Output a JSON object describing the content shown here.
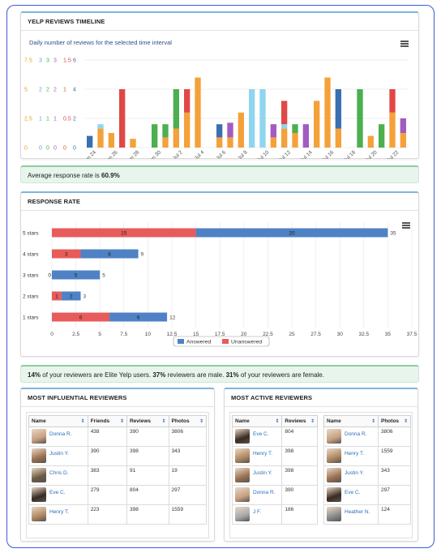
{
  "timeline": {
    "title": "YELP REVIEWS TIMELINE",
    "subtitle": "Daily number of reviews for the selected time interval",
    "y_axis_rows": [
      [
        "7.5",
        "3",
        "3",
        "3",
        "1.5",
        "6"
      ],
      [
        "5",
        "2",
        "2",
        "2",
        "1",
        "4"
      ],
      [
        "2.5",
        "1",
        "1",
        "1",
        "0.5",
        "2"
      ],
      [
        "0",
        "0",
        "0",
        "0",
        "0",
        "0"
      ]
    ],
    "y_axis_colors": [
      "#e8a020",
      "#5aa0d6",
      "#4caf50",
      "#a05cc0",
      "#e04848",
      "#3a6fb0"
    ]
  },
  "chart_data": [
    {
      "type": "bar",
      "title": "Daily number of reviews for the selected time interval",
      "x_tick_labels": [
        "Jun 24",
        "Jun 26",
        "Jun 28",
        "Jun 30",
        "Jul 2",
        "Jul 4",
        "Jul 6",
        "Jul 8",
        "Jul 10",
        "Jul 12",
        "Jul 14",
        "Jul 16",
        "Jul 18",
        "Jul 20",
        "Jul 22"
      ],
      "ylim": [
        0,
        6
      ],
      "stacked": true,
      "bars": [
        [
          {
            "v": 0.8,
            "c": "#3a6fb0"
          }
        ],
        [
          {
            "v": 1.3,
            "c": "#f5a13a"
          },
          {
            "v": 0.3,
            "c": "#8fd5f0"
          }
        ],
        [
          {
            "v": 1.0,
            "c": "#f5a13a"
          }
        ],
        [
          {
            "v": 4.0,
            "c": "#e04848"
          }
        ],
        [
          {
            "v": 0.6,
            "c": "#f5a13a"
          }
        ],
        [],
        [
          {
            "v": 1.6,
            "c": "#4caf50"
          }
        ],
        [
          {
            "v": 0.7,
            "c": "#f5a13a"
          },
          {
            "v": 0.9,
            "c": "#4caf50"
          }
        ],
        [
          {
            "v": 1.3,
            "c": "#f5a13a"
          },
          {
            "v": 2.7,
            "c": "#4caf50"
          }
        ],
        [
          {
            "v": 2.4,
            "c": "#f5a13a"
          },
          {
            "v": 1.6,
            "c": "#e04848"
          }
        ],
        [
          {
            "v": 4.8,
            "c": "#f5a13a"
          }
        ],
        [],
        [
          {
            "v": 0.7,
            "c": "#f5a13a"
          },
          {
            "v": 0.9,
            "c": "#3a6fb0"
          }
        ],
        [
          {
            "v": 0.7,
            "c": "#f5a13a"
          },
          {
            "v": 1.0,
            "c": "#a05cc0"
          }
        ],
        [
          {
            "v": 2.4,
            "c": "#f5a13a"
          }
        ],
        [
          {
            "v": 4.0,
            "c": "#8fd5f0"
          }
        ],
        [
          {
            "v": 4.0,
            "c": "#8fd5f0"
          }
        ],
        [
          {
            "v": 0.7,
            "c": "#f5a13a"
          },
          {
            "v": 0.9,
            "c": "#a05cc0"
          }
        ],
        [
          {
            "v": 1.3,
            "c": "#f5a13a"
          },
          {
            "v": 0.3,
            "c": "#8fd5f0"
          },
          {
            "v": 1.6,
            "c": "#e04848"
          }
        ],
        [
          {
            "v": 1.0,
            "c": "#f5a13a"
          },
          {
            "v": 0.6,
            "c": "#4caf50"
          }
        ],
        [
          {
            "v": 1.6,
            "c": "#a05cc0"
          }
        ],
        [
          {
            "v": 3.2,
            "c": "#f5a13a"
          }
        ],
        [
          {
            "v": 4.8,
            "c": "#f5a13a"
          }
        ],
        [
          {
            "v": 1.3,
            "c": "#f5a13a"
          },
          {
            "v": 2.7,
            "c": "#3a6fb0"
          }
        ],
        [],
        [
          {
            "v": 4.0,
            "c": "#4caf50"
          }
        ],
        [
          {
            "v": 0.8,
            "c": "#f5a13a"
          }
        ],
        [
          {
            "v": 1.6,
            "c": "#4caf50"
          }
        ],
        [
          {
            "v": 2.4,
            "c": "#f5a13a"
          },
          {
            "v": 1.6,
            "c": "#e04848"
          }
        ],
        [
          {
            "v": 1.0,
            "c": "#f5a13a"
          },
          {
            "v": 1.0,
            "c": "#a05cc0"
          }
        ]
      ]
    },
    {
      "type": "bar",
      "orientation": "horizontal",
      "stacked": true,
      "categories": [
        "5 stars",
        "4 stars",
        "3 stars",
        "2 stars",
        "1 stars"
      ],
      "series": [
        {
          "name": "Unanswered",
          "color": "#e85b5b",
          "values": [
            15,
            3,
            0,
            1,
            6
          ]
        },
        {
          "name": "Answered",
          "color": "#4e82c4",
          "values": [
            20,
            6,
            5,
            2,
            6
          ]
        }
      ],
      "totals": [
        35,
        9,
        5,
        3,
        12
      ],
      "xlim": [
        0,
        37.5
      ],
      "x_ticks": [
        "0",
        "2.5",
        "5",
        "7.5",
        "10",
        "12.5",
        "15",
        "17.5",
        "20",
        "22.5",
        "25",
        "27.5",
        "30",
        "32.5",
        "35",
        "37.5"
      ],
      "legend_order": [
        "Answered",
        "Unanswered"
      ],
      "legend_position": "bottom"
    }
  ],
  "response_notice": {
    "prefix": "Average response rate is ",
    "value": "60.9%"
  },
  "response_rate": {
    "title": "RESPONSE RATE"
  },
  "demographics": {
    "elite_pct": "14%",
    "elite_text": " of your reviewers are Elite Yelp users. ",
    "male_pct": "37%",
    "male_text": " reviewers are male. ",
    "female_pct": "31%",
    "female_text": " of your reviewers are female."
  },
  "influential": {
    "title": "MOST INFLUENTIAL REVIEWERS",
    "headers": [
      "Name",
      "Friends",
      "Reviews",
      "Photos"
    ],
    "rows": [
      {
        "name": "Donna R.",
        "friends": "438",
        "reviews": "390",
        "photos": "3806",
        "avatar": "#c8a080"
      },
      {
        "name": "Justin Y.",
        "friends": "390",
        "reviews": "398",
        "photos": "343",
        "avatar": "#9a7050"
      },
      {
        "name": "Chris D.",
        "friends": "383",
        "reviews": "91",
        "photos": "19",
        "avatar": "#6a5a40"
      },
      {
        "name": "Eve C.",
        "friends": "279",
        "reviews": "804",
        "photos": "297",
        "avatar": "#3a2a20"
      },
      {
        "name": "Henry T.",
        "friends": "223",
        "reviews": "398",
        "photos": "1559",
        "avatar": "#b08860"
      }
    ]
  },
  "active": {
    "title": "MOST ACTIVE REVIEWERS",
    "left_headers": [
      "Name",
      "Reviews"
    ],
    "right_headers": [
      "Name",
      "Photos"
    ],
    "left_rows": [
      {
        "name": "Eve C.",
        "value": "804",
        "avatar": "#3a2a20"
      },
      {
        "name": "Henry T.",
        "value": "398",
        "avatar": "#b08860"
      },
      {
        "name": "Justin Y.",
        "value": "398",
        "avatar": "#9a7050"
      },
      {
        "name": "Donna R.",
        "value": "390",
        "avatar": "#c8a080"
      },
      {
        "name": "J F.",
        "value": "186",
        "avatar": "#a8a8a8"
      }
    ],
    "right_rows": [
      {
        "name": "Donna R.",
        "value": "3806",
        "avatar": "#c8a080"
      },
      {
        "name": "Henry T.",
        "value": "1559",
        "avatar": "#b08860"
      },
      {
        "name": "Justin Y.",
        "value": "343",
        "avatar": "#9a7050"
      },
      {
        "name": "Eve C.",
        "value": "297",
        "avatar": "#3a2a20"
      },
      {
        "name": "Heather N.",
        "value": "124",
        "avatar": "#8a8a8a"
      }
    ]
  }
}
